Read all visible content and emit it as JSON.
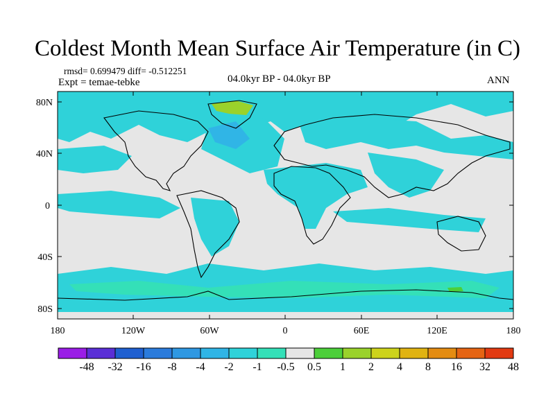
{
  "title": "Coldest Month Mean Surface Air Temperature (in C)",
  "stats": "rmsd= 0.699479  diff= -0.512251",
  "expt": "Expt = temae-tebke",
  "period": "04.0kyr BP - 04.0kyr BP",
  "season": "ANN",
  "axes": {
    "lat_ticks": [
      "80N",
      "40N",
      "0",
      "40S",
      "80S"
    ],
    "lon_ticks": [
      "180",
      "120W",
      "60W",
      "0",
      "60E",
      "120E",
      "180"
    ]
  },
  "colorbar": {
    "labels": [
      "-48",
      "-32",
      "-16",
      "-8",
      "-4",
      "-2",
      "-1",
      "-0.5",
      "0.5",
      "1",
      "2",
      "4",
      "8",
      "16",
      "32",
      "48"
    ],
    "colors": [
      "#9a1de6",
      "#5a2fd6",
      "#1f5fd0",
      "#2b7bdc",
      "#2f98e2",
      "#30b5e6",
      "#2fd2d9",
      "#34e0b8",
      "#e6e6e6",
      "#4ccf3a",
      "#9ad22b",
      "#cdd31c",
      "#e0b312",
      "#e48c12",
      "#e56413",
      "#e23a12"
    ]
  },
  "palette": {
    "background": "#e6e6e6",
    "cyan": "#2fd2d9",
    "teal": "#34e0b8",
    "blue": "#30b5e6",
    "green": "#9ad22b"
  }
}
